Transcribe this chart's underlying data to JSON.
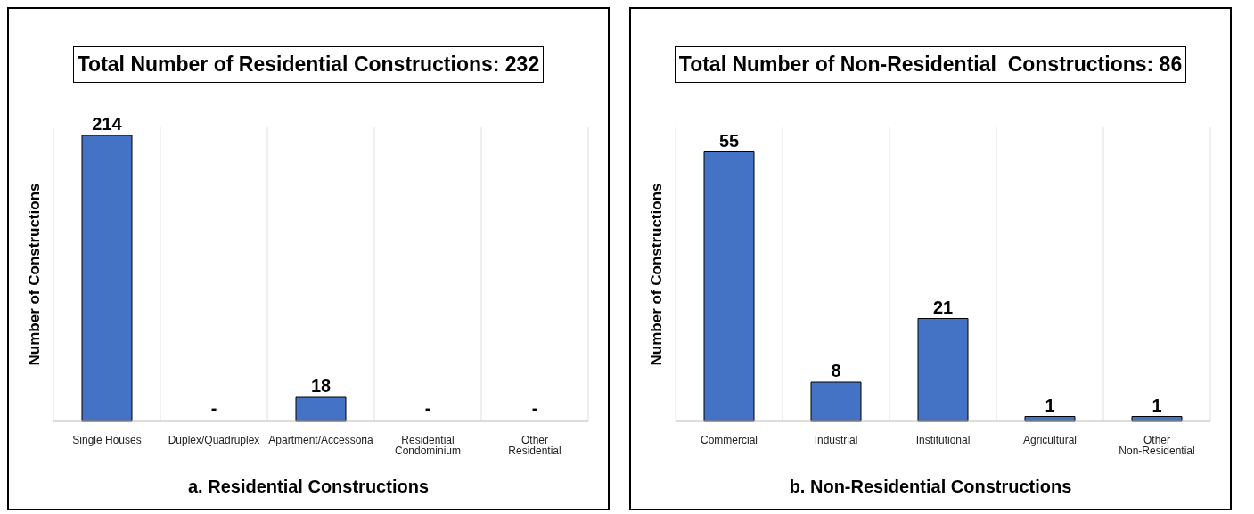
{
  "chart_data": [
    {
      "type": "bar",
      "title": "Total Number of Residential Constructions: 232",
      "xlabel": "a. Residential Constructions",
      "ylabel": "Number of Constructions",
      "categories": [
        "Single Houses",
        "Duplex/Quadruplex",
        "Apartment/Accessoria",
        "Residential Condominium",
        "Other Residential"
      ],
      "values": [
        214,
        0,
        18,
        0,
        0
      ],
      "value_labels": [
        "214",
        "-",
        "18",
        "-",
        "-"
      ],
      "color": "#4472c4",
      "grid": "x"
    },
    {
      "type": "bar",
      "title": "Total Number of Non-Residential  Constructions: 86",
      "xlabel": "b. Non-Residential Constructions",
      "ylabel": "Number of Constructions",
      "categories": [
        "Commercial",
        "Industrial",
        "Institutional",
        "Agricultural",
        "Other Non-Residential"
      ],
      "values": [
        55,
        8,
        21,
        1,
        1
      ],
      "data_labels": true,
      "color": "#4472c4",
      "grid": "x"
    }
  ]
}
